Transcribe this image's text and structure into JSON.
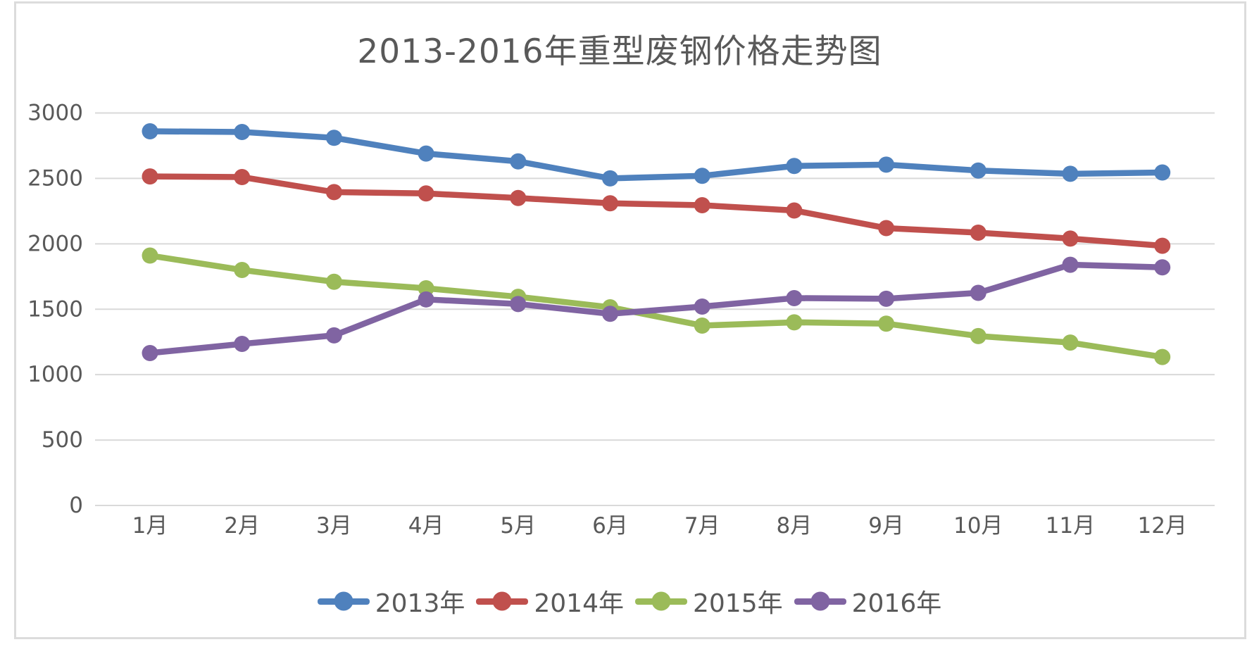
{
  "chart": {
    "title": "2013-2016年重型废钢价格走势图"
  },
  "chart_data": {
    "type": "line",
    "title": "2013-2016年重型废钢价格走势图",
    "xlabel": "",
    "ylabel": "",
    "categories": [
      "1月",
      "2月",
      "3月",
      "4月",
      "5月",
      "6月",
      "7月",
      "8月",
      "9月",
      "10月",
      "11月",
      "12月"
    ],
    "series": [
      {
        "name": "2013年",
        "color": "#4F81BD",
        "values": [
          2860,
          2855,
          2810,
          2690,
          2630,
          2500,
          2520,
          2595,
          2605,
          2560,
          2535,
          2545
        ]
      },
      {
        "name": "2014年",
        "color": "#C0504D",
        "values": [
          2515,
          2510,
          2395,
          2385,
          2350,
          2310,
          2295,
          2255,
          2120,
          2085,
          2040,
          1985
        ]
      },
      {
        "name": "2015年",
        "color": "#9BBB59",
        "values": [
          1910,
          1800,
          1710,
          1660,
          1595,
          1515,
          1375,
          1400,
          1390,
          1295,
          1245,
          1135
        ]
      },
      {
        "name": "2016年",
        "color": "#8064A2",
        "values": [
          1165,
          1235,
          1300,
          1575,
          1540,
          1465,
          1520,
          1585,
          1580,
          1625,
          1840,
          1820
        ]
      }
    ],
    "ylim": [
      0,
      3000
    ],
    "yticks": [
      "0",
      "500",
      "1000",
      "1500",
      "2000",
      "2500",
      "3000"
    ],
    "grid": "horizontal-only",
    "legend_position": "bottom",
    "marker": "circle",
    "axis_text_color": "#595959",
    "grid_color": "#d9d9d9",
    "background_color": "#ffffff",
    "frame_border_color": "#dcdcdc"
  }
}
